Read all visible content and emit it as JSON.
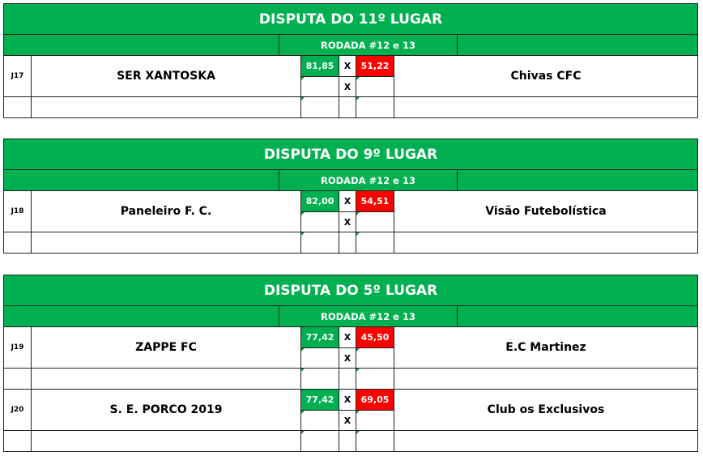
{
  "blocks": [
    {
      "title": "DISPUTA DO 11º LUGAR",
      "round": "RODADA #12 e 13",
      "matches": [
        {
          "code": "J17",
          "home": "SER XANTOSKA",
          "home_score": "81,85",
          "vs": "X",
          "away_score": "51,22",
          "away": "Chivas CFC"
        }
      ]
    },
    {
      "title": "DISPUTA DO 9º LUGAR",
      "round": "RODADA #12 e 13",
      "matches": [
        {
          "code": "J18",
          "home": "Paneleiro F. C.",
          "home_score": "82,00",
          "vs": "X",
          "away_score": "54,51",
          "away": "Visão Futebolística"
        }
      ]
    },
    {
      "title": "DISPUTA DO 5º LUGAR",
      "round": "RODADA #12 e 13",
      "matches": [
        {
          "code": "J19",
          "home": "ZAPPE FC",
          "home_score": "77,42",
          "vs": "X",
          "away_score": "45,50",
          "away": "E.C Martinez"
        },
        {
          "code": "J20",
          "home": "S. E. PORCO 2019",
          "home_score": "77,42",
          "vs": "X",
          "away_score": "69,05",
          "away": "Club os Exclusivos"
        }
      ]
    }
  ],
  "colors": {
    "header": "#00b050",
    "winner": "#00b050",
    "loser": "#ff0000"
  }
}
